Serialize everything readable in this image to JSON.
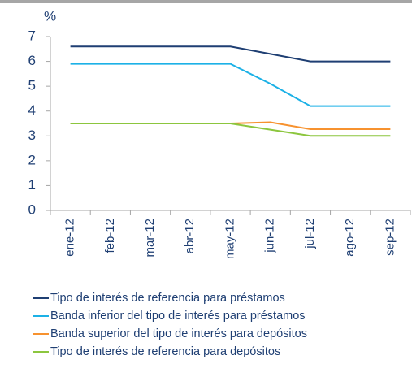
{
  "chart_data": {
    "type": "line",
    "y_label": "%",
    "categories": [
      "ene-12",
      "feb-12",
      "mar-12",
      "abr-12",
      "may-12",
      "jun-12",
      "jul-12",
      "ago-12",
      "sep-12"
    ],
    "series": [
      {
        "name": "Tipo de interés de referencia para préstamos",
        "color": "#1f3f73",
        "values": [
          6.6,
          6.6,
          6.6,
          6.6,
          6.6,
          6.3,
          6.0,
          6.0,
          6.0
        ]
      },
      {
        "name": "Banda inferior del tipo de interés para préstamos",
        "color": "#1cb1e6",
        "values": [
          5.9,
          5.9,
          5.9,
          5.9,
          5.9,
          5.1,
          4.2,
          4.2,
          4.2
        ]
      },
      {
        "name": "Banda superior del tipo de interés para depósitos",
        "color": "#f7922f",
        "values": [
          3.5,
          3.5,
          3.5,
          3.5,
          3.5,
          3.55,
          3.27,
          3.27,
          3.27
        ]
      },
      {
        "name": "Tipo de interés de referencia para depósitos",
        "color": "#8cc63e",
        "values": [
          3.5,
          3.5,
          3.5,
          3.5,
          3.5,
          3.25,
          3.0,
          3.0,
          3.0
        ]
      }
    ],
    "ylim": [
      0,
      7
    ],
    "yticks": [
      0,
      1,
      2,
      3,
      4,
      5,
      6,
      7
    ]
  }
}
